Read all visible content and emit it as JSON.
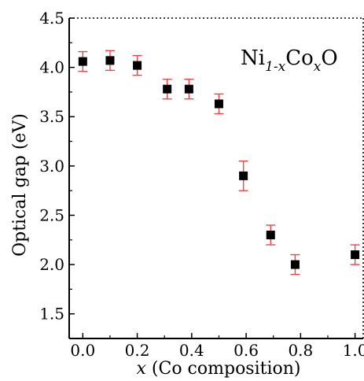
{
  "chart_data": {
    "type": "scatter",
    "title": "",
    "xlabel_var": "x",
    "xlabel_rest": " (Co composition)",
    "ylabel": "Optical gap (eV)",
    "xlim": [
      -0.05,
      1.03
    ],
    "ylim": [
      1.25,
      4.5
    ],
    "xticks": [
      0.0,
      0.2,
      0.4,
      0.6,
      0.8,
      1.0
    ],
    "xtick_labels": [
      "0.0",
      "0.2",
      "0.4",
      "0.6",
      "0.8",
      "1.0"
    ],
    "yticks": [
      1.5,
      2.0,
      2.5,
      3.0,
      3.5,
      4.0,
      4.5
    ],
    "ytick_labels": [
      "1.5",
      "2.0",
      "2.5",
      "3.0",
      "3.5",
      "4.0",
      "4.5"
    ],
    "annotation": {
      "ni": "Ni",
      "sub1": "1-x",
      "co": "Co",
      "sub2": "x",
      "o": "O"
    },
    "grid": false,
    "marker_color": "#000000",
    "errorbar_color": "#e8474a",
    "points": [
      {
        "x": 0.0,
        "y": 4.06,
        "yerr": 0.1
      },
      {
        "x": 0.1,
        "y": 4.07,
        "yerr": 0.1
      },
      {
        "x": 0.2,
        "y": 4.02,
        "yerr": 0.1
      },
      {
        "x": 0.31,
        "y": 3.78,
        "yerr": 0.1
      },
      {
        "x": 0.39,
        "y": 3.78,
        "yerr": 0.1
      },
      {
        "x": 0.5,
        "y": 3.63,
        "yerr": 0.1
      },
      {
        "x": 0.59,
        "y": 2.9,
        "yerr": 0.15
      },
      {
        "x": 0.69,
        "y": 2.3,
        "yerr": 0.1
      },
      {
        "x": 0.78,
        "y": 2.0,
        "yerr": 0.1
      },
      {
        "x": 1.0,
        "y": 2.1,
        "yerr": 0.1
      }
    ]
  }
}
